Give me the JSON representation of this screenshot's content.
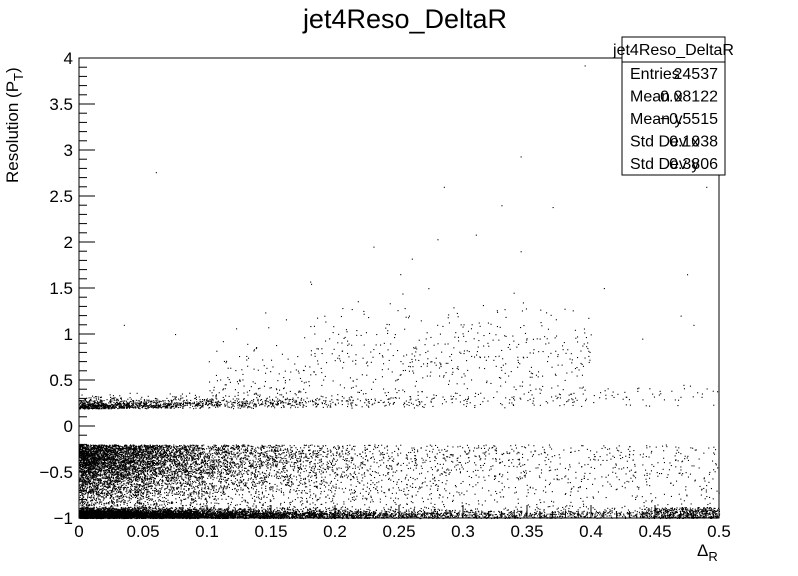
{
  "chart_data": {
    "type": "scatter",
    "title": "jet4Reso_DeltaR",
    "xlabel": {
      "main": "Δ",
      "sub": "R"
    },
    "ylabel": {
      "main": "Resolution (P",
      "sub": "T",
      "close": ")"
    },
    "xlim": [
      0,
      0.5
    ],
    "ylim": [
      -1,
      4
    ],
    "x_ticks": [
      "0",
      "0.05",
      "0.1",
      "0.15",
      "0.2",
      "0.25",
      "0.3",
      "0.35",
      "0.4",
      "0.45",
      "0.5"
    ],
    "y_ticks": [
      "−1",
      "−0.5",
      "0",
      "0.5",
      "1",
      "1.5",
      "2",
      "2.5",
      "3",
      "3.5",
      "4"
    ],
    "grid": false,
    "legend": "top-right",
    "stats_box": {
      "title": "jet4Reso_DeltaR",
      "rows": [
        {
          "label": "Entries",
          "value": "24537"
        },
        {
          "label": "Mean x",
          "value": "0.08122"
        },
        {
          "label": "Mean y",
          "value": "−0.5515"
        },
        {
          "label": "Std Dev x",
          "value": "0.1038"
        },
        {
          "label": "Std Dev y",
          "value": "0.3806"
        }
      ]
    },
    "entries": 24537,
    "mean_x": 0.08122,
    "mean_y": -0.5515,
    "std_x": 0.1038,
    "std_y": 0.3806,
    "gap": [
      -0.19,
      0.19
    ],
    "outliers": [
      [
        0.06,
        2.76
      ],
      [
        0.395,
        3.92
      ],
      [
        0.345,
        2.93
      ],
      [
        0.285,
        2.6
      ],
      [
        0.33,
        2.4
      ],
      [
        0.37,
        2.38
      ],
      [
        0.31,
        2.08
      ],
      [
        0.28,
        2.03
      ],
      [
        0.23,
        1.95
      ],
      [
        0.345,
        1.9
      ],
      [
        0.26,
        1.82
      ],
      [
        0.475,
        1.65
      ],
      [
        0.41,
        1.5
      ],
      [
        0.035,
        1.1
      ],
      [
        0.075,
        1.0
      ],
      [
        0.22,
        0.99
      ],
      [
        0.44,
        0.95
      ],
      [
        0.48,
        1.1
      ],
      [
        0.47,
        1.2
      ],
      [
        0.49,
        2.6
      ]
    ]
  }
}
